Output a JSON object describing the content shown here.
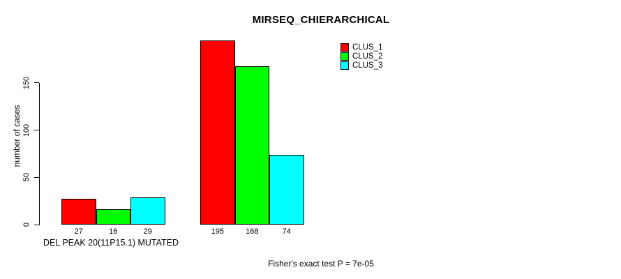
{
  "chart_data": {
    "type": "bar",
    "title": "MIRSEQ_CHIERARCHICAL",
    "ylabel": "number of cases",
    "xlabel": "DEL PEAK 20(11P15.1) MUTATED",
    "annotation": "Fisher's exact test P = 7e-05",
    "group_labels": [
      "DEL PEAK 20(11P15.1) MUTATED",
      ""
    ],
    "series": [
      {
        "name": "CLUS_1",
        "color": "#ff0000",
        "values": [
          27,
          195
        ]
      },
      {
        "name": "CLUS_2",
        "color": "#00ff00",
        "values": [
          16,
          168
        ]
      },
      {
        "name": "CLUS_3",
        "color": "#00ffff",
        "values": [
          29,
          74
        ]
      }
    ],
    "bar_value_labels": [
      [
        27,
        16,
        29
      ],
      [
        195,
        168,
        74
      ]
    ],
    "yticks": [
      0,
      50,
      100,
      150
    ],
    "ylim": [
      0,
      195
    ],
    "grid": false,
    "legend_position": "top-right",
    "bar_border_color": "#000000",
    "axis_color": "#000000",
    "background": "#ffffff",
    "text_color": "#000000"
  }
}
